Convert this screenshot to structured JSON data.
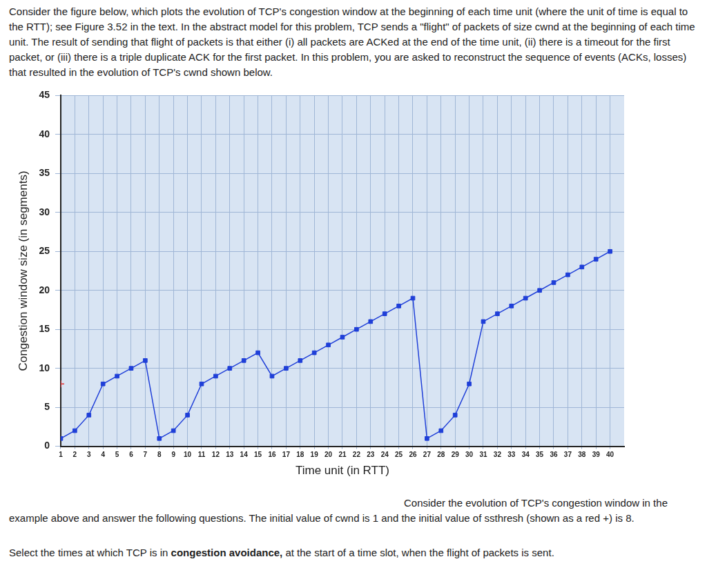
{
  "intro": "Consider the figure below, which plots the evolution of TCP's congestion window at the beginning of each time unit (where the unit of time is equal to the RTT); see Figure 3.52 in the text. In the abstract model for this problem, TCP sends a \"flight\" of packets of size cwnd at the beginning of each time unit. The result of sending that flight of packets is that either (i) all packets are ACKed at the end of the time unit, (ii) there is a timeout for the first packet, or (iii) there is a triple duplicate ACK for the first packet. In this problem, you are asked to reconstruct the sequence of events (ACKs, losses) that resulted in the evolution of TCP's cwnd shown below.",
  "chart_data": {
    "type": "line",
    "x_label": "Time unit (in RTT)",
    "y_label": "Congestion window size (in segments)",
    "x": [
      1,
      2,
      3,
      4,
      5,
      6,
      7,
      8,
      9,
      10,
      11,
      12,
      13,
      14,
      15,
      16,
      17,
      18,
      19,
      20,
      21,
      22,
      23,
      24,
      25,
      26,
      27,
      28,
      29,
      30,
      31,
      32,
      33,
      34,
      35,
      36,
      37,
      38,
      39,
      40
    ],
    "series": [
      {
        "name": "cwnd",
        "color": "#1f3fd8",
        "marker": "square",
        "line_style": "solid",
        "values": [
          1,
          2,
          4,
          8,
          9,
          10,
          11,
          1,
          2,
          4,
          8,
          9,
          10,
          11,
          12,
          9,
          10,
          11,
          12,
          13,
          14,
          15,
          16,
          17,
          18,
          19,
          1,
          2,
          4,
          8,
          16,
          17,
          18,
          19,
          20,
          21,
          22,
          23,
          24,
          25
        ]
      },
      {
        "name": "ssthresh",
        "type": "scatter",
        "color": "#e03030",
        "marker": "cross",
        "x": [
          1
        ],
        "values": [
          8
        ]
      }
    ],
    "xlim": [
      1,
      41
    ],
    "xticks": [
      1,
      2,
      3,
      4,
      5,
      6,
      7,
      8,
      9,
      10,
      11,
      12,
      13,
      14,
      15,
      16,
      17,
      18,
      19,
      20,
      21,
      22,
      23,
      24,
      25,
      26,
      27,
      28,
      29,
      30,
      31,
      32,
      33,
      34,
      35,
      36,
      37,
      38,
      39,
      40
    ],
    "ylim": [
      0,
      45
    ],
    "yticks": [
      0,
      5,
      10,
      15,
      20,
      25,
      30,
      35,
      40,
      45
    ],
    "grid": true
  },
  "para2": "Consider the evolution of TCP's congestion window in the example above and answer the following questions. The initial value of cwnd is 1 and the initial value of ssthresh (shown as a red +) is 8.",
  "para3": [
    {
      "text": "Select the times at which TCP is in "
    },
    {
      "text": "congestion avoidance,",
      "bold": true
    },
    {
      "text": " at the start of a time slot, when the flight of packets is sent."
    }
  ]
}
